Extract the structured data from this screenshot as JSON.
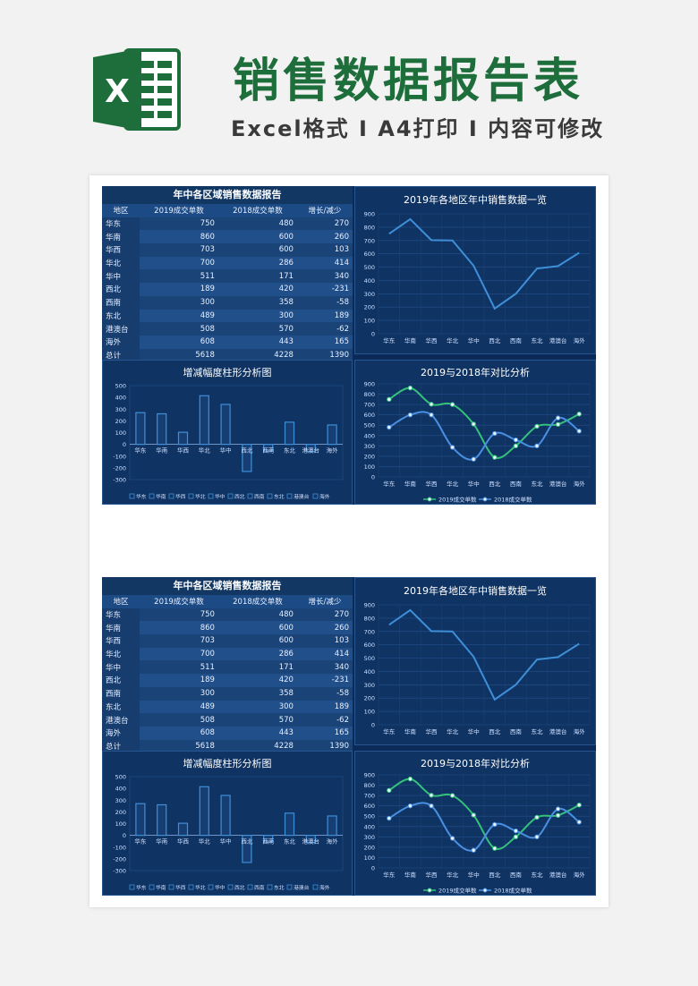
{
  "header": {
    "logo_letter": "X",
    "title": "销售数据报告表",
    "subtitle": "Excel格式 I A4打印 I 内容可修改"
  },
  "table": {
    "title": "年中各区域销售数据报告",
    "headers": [
      "地区",
      "2019成交单数",
      "2018成交单数",
      "增长/减少"
    ],
    "rows": [
      [
        "华东",
        "750",
        "480",
        "270"
      ],
      [
        "华南",
        "860",
        "600",
        "260"
      ],
      [
        "华西",
        "703",
        "600",
        "103"
      ],
      [
        "华北",
        "700",
        "286",
        "414"
      ],
      [
        "华中",
        "511",
        "171",
        "340"
      ],
      [
        "西北",
        "189",
        "420",
        "-231"
      ],
      [
        "西南",
        "300",
        "358",
        "-58"
      ],
      [
        "东北",
        "489",
        "300",
        "189"
      ],
      [
        "港澳台",
        "508",
        "570",
        "-62"
      ],
      [
        "海外",
        "608",
        "443",
        "165"
      ],
      [
        "总计",
        "5618",
        "4228",
        "1390"
      ]
    ]
  },
  "chart_data": [
    {
      "type": "line",
      "title": "2019年各地区年中销售数据一览",
      "categories": [
        "华东",
        "华南",
        "华西",
        "华北",
        "华中",
        "西北",
        "西南",
        "东北",
        "港澳台",
        "海外"
      ],
      "series": [
        {
          "values": [
            750,
            860,
            703,
            700,
            511,
            189,
            300,
            489,
            508,
            608
          ]
        }
      ],
      "ylim": [
        0,
        900
      ],
      "yticks": [
        0,
        100,
        200,
        300,
        400,
        500,
        600,
        700,
        800,
        900
      ],
      "grid": true,
      "color": "#3f8fd8"
    },
    {
      "type": "bar",
      "title": "增减幅度柱形分析图",
      "categories": [
        "华东",
        "华南",
        "华西",
        "华北",
        "华中",
        "西北",
        "西南",
        "东北",
        "港澳台",
        "海外"
      ],
      "values": [
        270,
        260,
        103,
        414,
        340,
        -231,
        -58,
        189,
        -62,
        165
      ],
      "ylim": [
        -300,
        500
      ],
      "yticks": [
        500,
        400,
        300,
        200,
        100,
        0,
        -100,
        -200,
        -300
      ],
      "legend": "bottom",
      "color": "#3f8fd8"
    },
    {
      "type": "line",
      "title": "2019与2018年对比分析",
      "categories": [
        "华东",
        "华南",
        "华西",
        "华北",
        "华中",
        "西北",
        "西南",
        "东北",
        "港澳台",
        "海外"
      ],
      "series": [
        {
          "name": "2019成交单数",
          "values": [
            750,
            860,
            703,
            700,
            511,
            189,
            300,
            489,
            508,
            608
          ],
          "color": "#35c27a"
        },
        {
          "name": "2018成交单数",
          "values": [
            480,
            600,
            600,
            286,
            171,
            420,
            358,
            300,
            570,
            443
          ],
          "color": "#4a90e2"
        }
      ],
      "ylim": [
        0,
        900
      ],
      "yticks": [
        0,
        100,
        200,
        300,
        400,
        500,
        600,
        700,
        800,
        900
      ],
      "grid": true,
      "legend": "bottom"
    }
  ]
}
